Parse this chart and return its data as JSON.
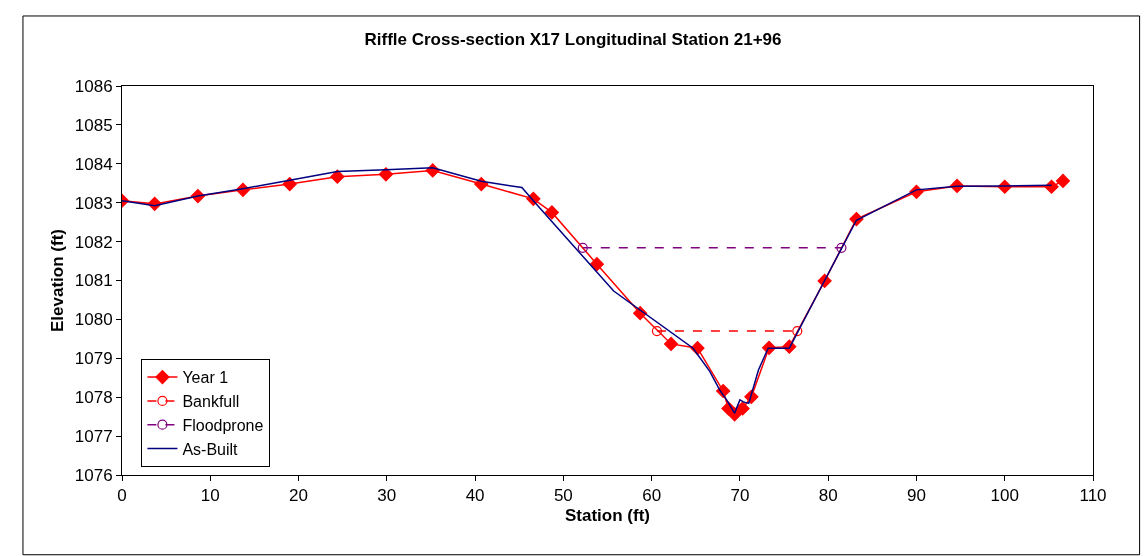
{
  "chart_data": {
    "type": "line",
    "title": "Riffle Cross-section X17 Longitudinal Station 21+96",
    "xlabel": "Station (ft)",
    "ylabel": "Elevation (ft)",
    "xlim": [
      0,
      110
    ],
    "xticks": [
      0,
      10,
      20,
      30,
      40,
      50,
      60,
      70,
      80,
      90,
      100,
      110
    ],
    "ylim": [
      1076,
      1086
    ],
    "yticks": [
      1076,
      1077,
      1078,
      1079,
      1080,
      1081,
      1082,
      1083,
      1084,
      1085,
      1086
    ],
    "legend": "bottom left",
    "series": [
      {
        "name": "Year 1",
        "color": "#ff0000",
        "marker": "diamond",
        "line_style": "solid",
        "x": [
          0,
          3.7,
          8.6,
          13.7,
          19,
          24.4,
          29.9,
          35.2,
          40.7,
          46.6,
          48.7,
          53.8,
          58.7,
          62.2,
          65.2,
          68.1,
          68.7,
          69.4,
          70.3,
          71.3,
          73.3,
          75.6,
          79.6,
          83.2,
          90.0,
          94.6,
          100.0,
          105.3,
          106.6
        ],
        "values": [
          1083.05,
          1082.97,
          1083.17,
          1083.33,
          1083.48,
          1083.67,
          1083.73,
          1083.83,
          1083.48,
          1083.1,
          1082.75,
          1081.42,
          1080.16,
          1079.37,
          1079.26,
          1078.16,
          1077.71,
          1077.56,
          1077.71,
          1078.01,
          1079.27,
          1079.3,
          1080.99,
          1082.58,
          1083.28,
          1083.43,
          1083.41,
          1083.41,
          1083.56
        ]
      },
      {
        "name": "Bankfull",
        "color": "#ff0000",
        "marker": "circle",
        "line_style": "dashed",
        "x": [
          60.6,
          76.5
        ],
        "values": [
          1079.7,
          1079.7
        ]
      },
      {
        "name": "Floodprone",
        "color": "#800080",
        "marker": "circle",
        "line_style": "dashed",
        "x": [
          52.2,
          81.5
        ],
        "values": [
          1081.84,
          1081.84
        ]
      },
      {
        "name": "As-Built",
        "color": "#000080",
        "marker": "none",
        "line_style": "solid",
        "x": [
          0,
          3.7,
          8.6,
          13.7,
          19,
          24.4,
          29.9,
          35.2,
          40.7,
          45.3,
          46.6,
          55.7,
          64.7,
          66.6,
          67.7,
          68.5,
          69.4,
          70.0,
          70.4,
          71.0,
          72.1,
          73.2,
          75.6,
          79.6,
          83.2,
          90.0,
          94.6,
          100.0,
          105.3
        ],
        "values": [
          1083.05,
          1082.92,
          1083.17,
          1083.36,
          1083.58,
          1083.8,
          1083.85,
          1083.9,
          1083.55,
          1083.39,
          1083.05,
          1080.73,
          1079.26,
          1078.66,
          1078.19,
          1077.93,
          1077.59,
          1077.93,
          1077.88,
          1077.84,
          1078.7,
          1079.26,
          1079.26,
          1081.0,
          1082.55,
          1083.33,
          1083.42,
          1083.43,
          1083.45
        ]
      }
    ]
  }
}
